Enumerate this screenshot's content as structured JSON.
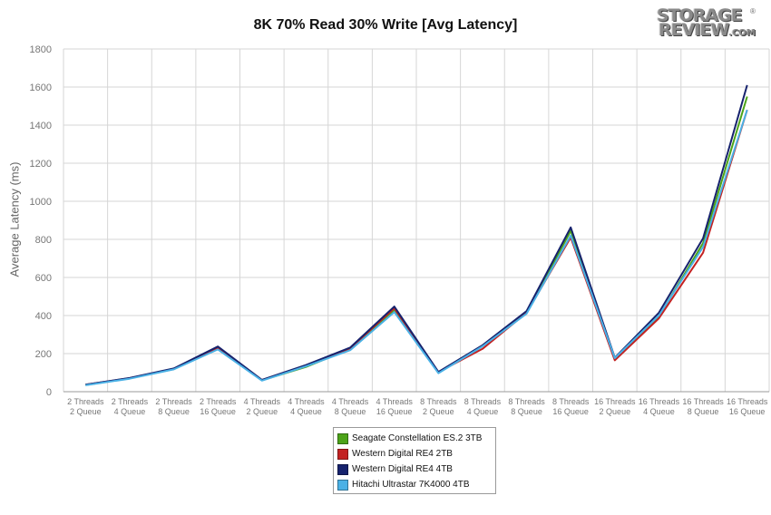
{
  "chart_data": {
    "type": "line",
    "title": "8K 70% Read 30% Write [Avg Latency]",
    "ylabel": "Average Latency (ms)",
    "xlabel": "",
    "ylim": [
      0,
      1800
    ],
    "yticks": [
      0,
      200,
      400,
      600,
      800,
      1000,
      1200,
      1400,
      1600,
      1800
    ],
    "grid": true,
    "legend_position": "bottom",
    "categories": [
      [
        "2 Threads",
        "2 Queue"
      ],
      [
        "2 Threads",
        "4 Queue"
      ],
      [
        "2 Threads",
        "8 Queue"
      ],
      [
        "2 Threads",
        "16 Queue"
      ],
      [
        "4 Threads",
        "2 Queue"
      ],
      [
        "4 Threads",
        "4 Queue"
      ],
      [
        "4 Threads",
        "8 Queue"
      ],
      [
        "4 Threads",
        "16 Queue"
      ],
      [
        "8 Threads",
        "2 Queue"
      ],
      [
        "8 Threads",
        "4 Queue"
      ],
      [
        "8 Threads",
        "8 Queue"
      ],
      [
        "8 Threads",
        "16 Queue"
      ],
      [
        "16 Threads",
        "2 Queue"
      ],
      [
        "16 Threads",
        "4 Queue"
      ],
      [
        "16 Threads",
        "8 Queue"
      ],
      [
        "16 Threads",
        "16 Queue"
      ]
    ],
    "series": [
      {
        "name": "Seagate Constellation ES.2 3TB",
        "color": "#4ca319",
        "values": [
          35,
          70,
          118,
          230,
          60,
          130,
          225,
          430,
          100,
          240,
          415,
          845,
          172,
          395,
          780,
          1550
        ]
      },
      {
        "name": "Western Digital RE4 2TB",
        "color": "#c32222",
        "values": [
          37,
          71,
          120,
          232,
          61,
          136,
          228,
          438,
          103,
          225,
          415,
          810,
          165,
          385,
          730,
          1480
        ]
      },
      {
        "name": "Western Digital RE4 4TB",
        "color": "#16226d",
        "values": [
          37,
          72,
          122,
          237,
          62,
          140,
          232,
          447,
          104,
          244,
          424,
          863,
          178,
          415,
          805,
          1610
        ]
      },
      {
        "name": "Hitachi Ultrastar 7K4000 4TB",
        "color": "#4ab1e6",
        "values": [
          34,
          68,
          117,
          222,
          58,
          134,
          218,
          418,
          97,
          238,
          410,
          820,
          176,
          400,
          760,
          1480
        ]
      }
    ]
  },
  "logo": {
    "line1": "STORAGE",
    "line2": "REVIEW",
    "suffix": ".COM",
    "registered": "®"
  }
}
